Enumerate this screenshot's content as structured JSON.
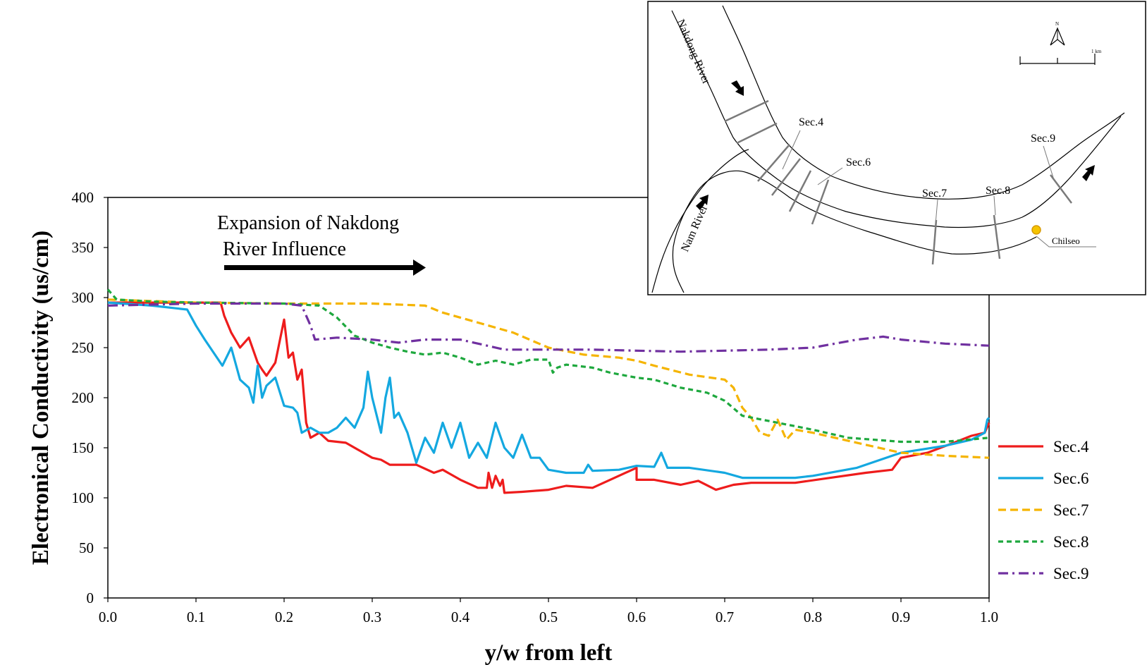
{
  "chart_data": {
    "type": "line",
    "title": "",
    "xlabel": "y/w from left",
    "ylabel": "Electronical Conductivity (us/cm)",
    "xlim": [
      0.0,
      1.0
    ],
    "ylim": [
      0,
      400
    ],
    "xticks": [
      "0.0",
      "0.1",
      "0.2",
      "0.3",
      "0.4",
      "0.5",
      "0.6",
      "0.7",
      "0.8",
      "0.9",
      "1.0"
    ],
    "yticks": [
      "0",
      "50",
      "100",
      "150",
      "200",
      "250",
      "300",
      "350",
      "400"
    ],
    "grid": false,
    "legend_position": "right",
    "annotation": {
      "line1": "Expansion of Nakdong",
      "line2": "River Influence"
    },
    "series": [
      {
        "name": "Sec.4",
        "color": "#ee1c1c",
        "dash": "solid",
        "points": [
          [
            0.0,
            295
          ],
          [
            0.05,
            295
          ],
          [
            0.1,
            295
          ],
          [
            0.128,
            295
          ],
          [
            0.132,
            282
          ],
          [
            0.14,
            265
          ],
          [
            0.15,
            250
          ],
          [
            0.16,
            260
          ],
          [
            0.17,
            235
          ],
          [
            0.175,
            228
          ],
          [
            0.18,
            222
          ],
          [
            0.19,
            235
          ],
          [
            0.2,
            278
          ],
          [
            0.205,
            240
          ],
          [
            0.21,
            245
          ],
          [
            0.215,
            218
          ],
          [
            0.22,
            228
          ],
          [
            0.225,
            175
          ],
          [
            0.23,
            160
          ],
          [
            0.24,
            165
          ],
          [
            0.25,
            157
          ],
          [
            0.27,
            155
          ],
          [
            0.3,
            140
          ],
          [
            0.31,
            138
          ],
          [
            0.32,
            133
          ],
          [
            0.35,
            133
          ],
          [
            0.37,
            125
          ],
          [
            0.38,
            128
          ],
          [
            0.4,
            118
          ],
          [
            0.42,
            110
          ],
          [
            0.43,
            110
          ],
          [
            0.432,
            125
          ],
          [
            0.436,
            110
          ],
          [
            0.44,
            122
          ],
          [
            0.445,
            112
          ],
          [
            0.448,
            118
          ],
          [
            0.45,
            105
          ],
          [
            0.47,
            106
          ],
          [
            0.5,
            108
          ],
          [
            0.52,
            112
          ],
          [
            0.55,
            110
          ],
          [
            0.57,
            118
          ],
          [
            0.6,
            130
          ],
          [
            0.6,
            118
          ],
          [
            0.62,
            118
          ],
          [
            0.65,
            113
          ],
          [
            0.67,
            117
          ],
          [
            0.69,
            108
          ],
          [
            0.71,
            113
          ],
          [
            0.73,
            115
          ],
          [
            0.78,
            115
          ],
          [
            0.82,
            120
          ],
          [
            0.86,
            125
          ],
          [
            0.89,
            128
          ],
          [
            0.9,
            140
          ],
          [
            0.93,
            145
          ],
          [
            0.96,
            155
          ],
          [
            0.98,
            162
          ],
          [
            0.995,
            165
          ],
          [
            1.0,
            175
          ]
        ]
      },
      {
        "name": "Sec.6",
        "color": "#14a8e0",
        "dash": "solid",
        "points": [
          [
            0.0,
            295
          ],
          [
            0.05,
            292
          ],
          [
            0.09,
            288
          ],
          [
            0.1,
            272
          ],
          [
            0.11,
            258
          ],
          [
            0.12,
            245
          ],
          [
            0.13,
            232
          ],
          [
            0.14,
            250
          ],
          [
            0.15,
            218
          ],
          [
            0.16,
            210
          ],
          [
            0.165,
            195
          ],
          [
            0.17,
            232
          ],
          [
            0.175,
            200
          ],
          [
            0.18,
            212
          ],
          [
            0.19,
            220
          ],
          [
            0.2,
            192
          ],
          [
            0.21,
            190
          ],
          [
            0.215,
            185
          ],
          [
            0.22,
            165
          ],
          [
            0.23,
            170
          ],
          [
            0.24,
            165
          ],
          [
            0.25,
            165
          ],
          [
            0.26,
            170
          ],
          [
            0.27,
            180
          ],
          [
            0.28,
            170
          ],
          [
            0.29,
            190
          ],
          [
            0.295,
            226
          ],
          [
            0.3,
            200
          ],
          [
            0.31,
            165
          ],
          [
            0.315,
            200
          ],
          [
            0.32,
            220
          ],
          [
            0.325,
            180
          ],
          [
            0.33,
            185
          ],
          [
            0.34,
            165
          ],
          [
            0.35,
            135
          ],
          [
            0.36,
            160
          ],
          [
            0.37,
            145
          ],
          [
            0.38,
            175
          ],
          [
            0.39,
            150
          ],
          [
            0.4,
            175
          ],
          [
            0.41,
            140
          ],
          [
            0.42,
            155
          ],
          [
            0.43,
            140
          ],
          [
            0.44,
            175
          ],
          [
            0.45,
            150
          ],
          [
            0.46,
            140
          ],
          [
            0.47,
            163
          ],
          [
            0.48,
            140
          ],
          [
            0.49,
            140
          ],
          [
            0.5,
            128
          ],
          [
            0.52,
            125
          ],
          [
            0.54,
            125
          ],
          [
            0.545,
            133
          ],
          [
            0.55,
            127
          ],
          [
            0.58,
            128
          ],
          [
            0.6,
            132
          ],
          [
            0.62,
            131
          ],
          [
            0.628,
            145
          ],
          [
            0.635,
            130
          ],
          [
            0.66,
            130
          ],
          [
            0.7,
            125
          ],
          [
            0.72,
            120
          ],
          [
            0.78,
            120
          ],
          [
            0.8,
            122
          ],
          [
            0.85,
            130
          ],
          [
            0.9,
            145
          ],
          [
            0.95,
            152
          ],
          [
            0.98,
            158
          ],
          [
            0.995,
            165
          ],
          [
            0.998,
            178
          ],
          [
            1.0,
            180
          ]
        ]
      },
      {
        "name": "Sec.7",
        "color": "#f5b400",
        "dash": "long-dash",
        "points": [
          [
            0.0,
            298
          ],
          [
            0.1,
            295
          ],
          [
            0.2,
            294
          ],
          [
            0.3,
            294
          ],
          [
            0.36,
            292
          ],
          [
            0.38,
            285
          ],
          [
            0.42,
            275
          ],
          [
            0.46,
            265
          ],
          [
            0.5,
            250
          ],
          [
            0.54,
            243
          ],
          [
            0.58,
            240
          ],
          [
            0.6,
            237
          ],
          [
            0.62,
            232
          ],
          [
            0.66,
            223
          ],
          [
            0.7,
            218
          ],
          [
            0.71,
            210
          ],
          [
            0.72,
            190
          ],
          [
            0.73,
            180
          ],
          [
            0.74,
            165
          ],
          [
            0.75,
            162
          ],
          [
            0.76,
            178
          ],
          [
            0.77,
            158
          ],
          [
            0.78,
            168
          ],
          [
            0.8,
            165
          ],
          [
            0.85,
            155
          ],
          [
            0.9,
            145
          ],
          [
            0.95,
            142
          ],
          [
            1.0,
            140
          ]
        ]
      },
      {
        "name": "Sec.8",
        "color": "#1ea83e",
        "dash": "short-dash",
        "points": [
          [
            0.0,
            308
          ],
          [
            0.01,
            298
          ],
          [
            0.05,
            296
          ],
          [
            0.1,
            295
          ],
          [
            0.2,
            294
          ],
          [
            0.24,
            292
          ],
          [
            0.26,
            280
          ],
          [
            0.28,
            262
          ],
          [
            0.3,
            255
          ],
          [
            0.32,
            250
          ],
          [
            0.34,
            246
          ],
          [
            0.36,
            243
          ],
          [
            0.38,
            245
          ],
          [
            0.4,
            240
          ],
          [
            0.42,
            233
          ],
          [
            0.44,
            237
          ],
          [
            0.46,
            233
          ],
          [
            0.48,
            238
          ],
          [
            0.5,
            238
          ],
          [
            0.505,
            225
          ],
          [
            0.51,
            230
          ],
          [
            0.52,
            233
          ],
          [
            0.55,
            230
          ],
          [
            0.57,
            225
          ],
          [
            0.6,
            220
          ],
          [
            0.62,
            218
          ],
          [
            0.65,
            210
          ],
          [
            0.68,
            205
          ],
          [
            0.7,
            197
          ],
          [
            0.72,
            182
          ],
          [
            0.76,
            175
          ],
          [
            0.8,
            168
          ],
          [
            0.84,
            160
          ],
          [
            0.9,
            156
          ],
          [
            0.95,
            156
          ],
          [
            1.0,
            160
          ]
        ]
      },
      {
        "name": "Sec.9",
        "color": "#7030a0",
        "dash": "dash-dot",
        "points": [
          [
            0.0,
            292
          ],
          [
            0.1,
            294
          ],
          [
            0.2,
            294
          ],
          [
            0.22,
            292
          ],
          [
            0.23,
            272
          ],
          [
            0.235,
            258
          ],
          [
            0.26,
            260
          ],
          [
            0.3,
            258
          ],
          [
            0.33,
            255
          ],
          [
            0.36,
            258
          ],
          [
            0.4,
            258
          ],
          [
            0.45,
            248
          ],
          [
            0.5,
            248
          ],
          [
            0.55,
            248
          ],
          [
            0.6,
            247
          ],
          [
            0.65,
            246
          ],
          [
            0.7,
            247
          ],
          [
            0.75,
            248
          ],
          [
            0.8,
            250
          ],
          [
            0.85,
            258
          ],
          [
            0.88,
            261
          ],
          [
            0.9,
            258
          ],
          [
            0.95,
            254
          ],
          [
            1.0,
            252
          ]
        ]
      }
    ]
  },
  "map": {
    "labels": {
      "nakdong": "Nakdong River",
      "nam": "Nam River",
      "sec4": "Sec.4",
      "sec6": "Sec.6",
      "sec7": "Sec.7",
      "sec8": "Sec.8",
      "sec9": "Sec.9",
      "chilseo": "Chilseo",
      "north": "N",
      "scale": "1 km"
    }
  }
}
